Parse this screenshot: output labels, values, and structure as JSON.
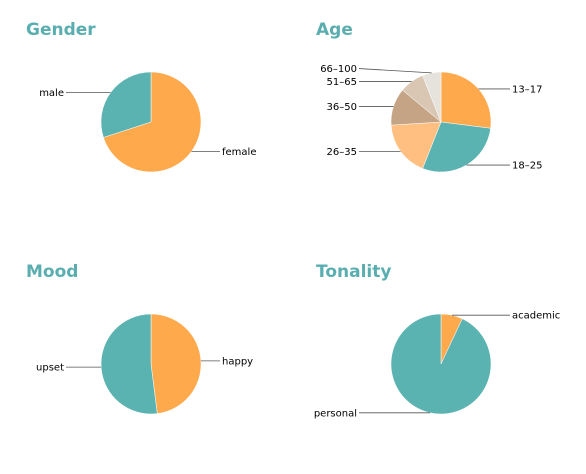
{
  "colors": {
    "title": "#5aaeb0",
    "orange": "#ffa94d",
    "teal": "#5ab3b1",
    "light_orange": "#ffbf80",
    "tan": "#c4a484",
    "light_tan": "#d9c7b3",
    "pale": "#e6e2dc",
    "leader": "#555555"
  },
  "panels": {
    "gender": {
      "title": "Gender"
    },
    "age": {
      "title": "Age"
    },
    "mood": {
      "title": "Mood"
    },
    "tonality": {
      "title": "Tonality"
    }
  },
  "chart_data": [
    {
      "type": "pie",
      "title": "Gender",
      "start_angle_deg": 0,
      "slices": [
        {
          "label": "female",
          "value": 0.7,
          "color": "#ffa94d",
          "label_side": "right"
        },
        {
          "label": "male",
          "value": 0.3,
          "color": "#5ab3b1",
          "label_side": "left"
        }
      ]
    },
    {
      "type": "pie",
      "title": "Age",
      "start_angle_deg": 0,
      "slices": [
        {
          "label": "13–17",
          "value": 0.27,
          "color": "#ffa94d",
          "label_side": "right"
        },
        {
          "label": "18–25",
          "value": 0.29,
          "color": "#5ab3b1",
          "label_side": "right"
        },
        {
          "label": "26–35",
          "value": 0.18,
          "color": "#ffbf80",
          "label_side": "left"
        },
        {
          "label": "36–50",
          "value": 0.12,
          "color": "#c4a484",
          "label_side": "left"
        },
        {
          "label": "51–65",
          "value": 0.08,
          "color": "#d9c7b3",
          "label_side": "left"
        },
        {
          "label": "66–100",
          "value": 0.06,
          "color": "#e6e2dc",
          "label_side": "left"
        }
      ]
    },
    {
      "type": "pie",
      "title": "Mood",
      "start_angle_deg": 0,
      "slices": [
        {
          "label": "happy",
          "value": 0.48,
          "color": "#ffa94d",
          "label_side": "right"
        },
        {
          "label": "upset",
          "value": 0.52,
          "color": "#5ab3b1",
          "label_side": "left"
        }
      ]
    },
    {
      "type": "pie",
      "title": "Tonality",
      "start_angle_deg": 0,
      "slices": [
        {
          "label": "academic",
          "value": 0.07,
          "color": "#ffa94d",
          "label_side": "right"
        },
        {
          "label": "personal",
          "value": 0.93,
          "color": "#5ab3b1",
          "label_side": "left"
        }
      ]
    }
  ]
}
